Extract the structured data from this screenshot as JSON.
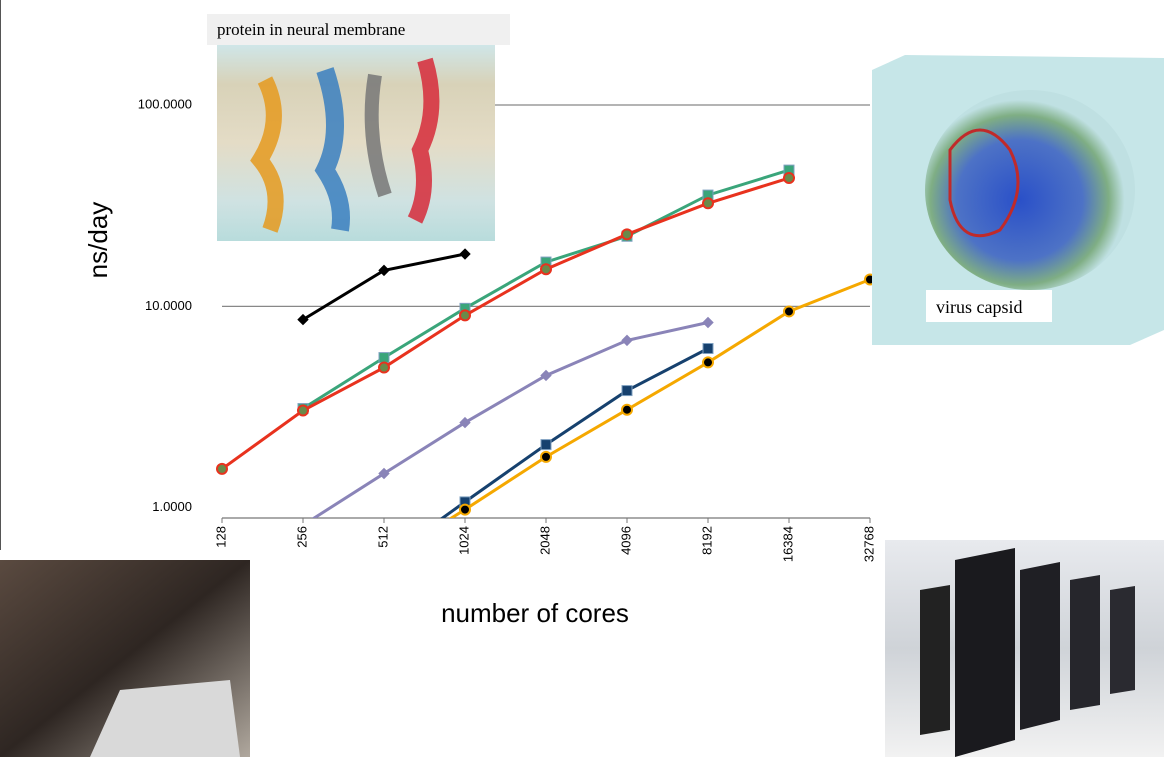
{
  "chart_data": {
    "type": "line",
    "x_label": "number of cores",
    "y_label": "ns/day",
    "log_y": true,
    "log_x": true,
    "xlim": [
      128,
      32768
    ],
    "xticks": [
      128,
      256,
      512,
      1024,
      2048,
      4096,
      8192,
      16384,
      32768
    ],
    "ylim": [
      0.89,
      100
    ],
    "yticks": [
      {
        "value": 1,
        "label": "1.0000"
      },
      {
        "value": 10,
        "label": "10.0000"
      },
      {
        "value": 100,
        "label": "100.0000"
      }
    ],
    "grid": true,
    "series": [
      {
        "color": "#000000",
        "marker": "diamond",
        "x": [
          256,
          512,
          1024
        ],
        "values": [
          8.6,
          15.1,
          18.2
        ]
      },
      {
        "color": "#3aa57a",
        "marker": "square",
        "x": [
          256,
          512,
          1024,
          2048,
          4096,
          8192,
          16384
        ],
        "values": [
          3.11,
          5.57,
          9.78,
          16.6,
          22.3,
          35.7,
          47.5
        ]
      },
      {
        "color": "#e8321e",
        "marker": "circle",
        "x": [
          128,
          256,
          512,
          1024,
          2048,
          4096,
          8192,
          16384
        ],
        "values": [
          1.56,
          3.04,
          4.97,
          9.02,
          15.3,
          22.8,
          32.5,
          43.4
        ]
      },
      {
        "color": "#8a84b8",
        "marker": "diamond",
        "x": [
          256,
          512,
          1024,
          2048,
          4096,
          8192
        ],
        "values": [
          0.82,
          1.48,
          2.65,
          4.54,
          6.78,
          8.32
        ]
      },
      {
        "color": "#16416e",
        "marker": "square",
        "x": [
          512,
          1024,
          2048,
          4096,
          8192
        ],
        "values": [
          0.55,
          1.07,
          2.06,
          3.82,
          6.18
        ]
      },
      {
        "color": "#f5a800",
        "marker": "circle",
        "x": [
          512,
          1024,
          2048,
          4096,
          8192,
          16384,
          32768
        ],
        "values": [
          0.55,
          0.98,
          1.79,
          3.07,
          5.27,
          9.44,
          13.6
        ]
      }
    ]
  },
  "images": {
    "protein_caption": "protein in neural membrane",
    "virus_caption": "virus capsid"
  }
}
